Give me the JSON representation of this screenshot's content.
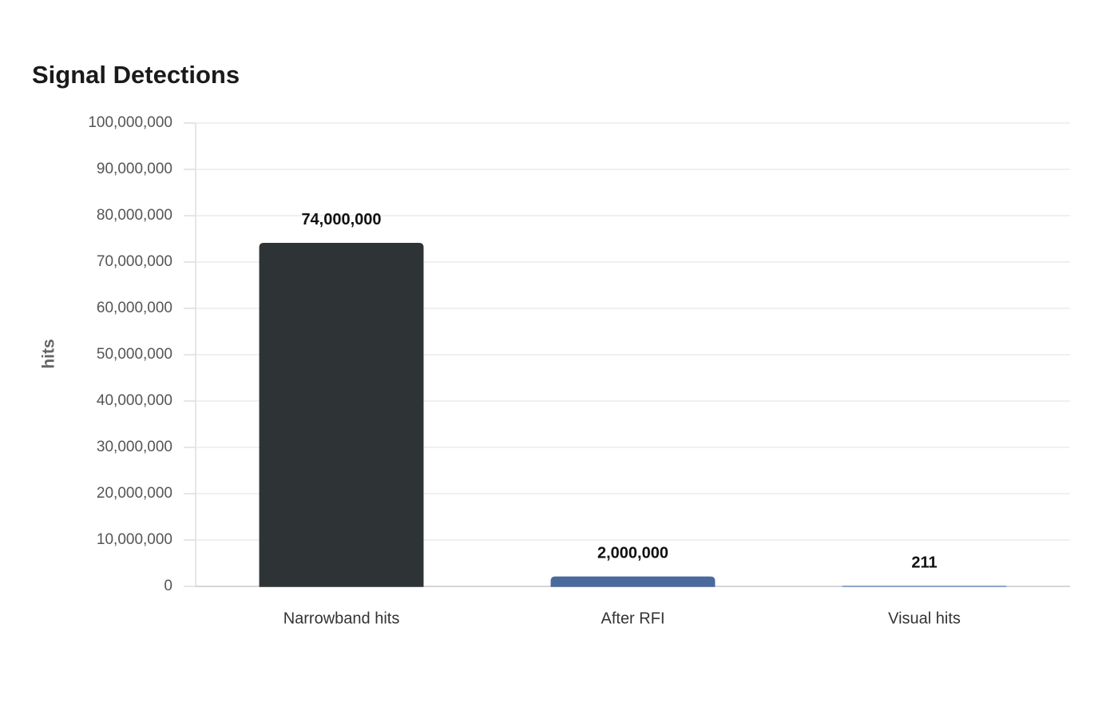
{
  "chart_data": {
    "type": "bar",
    "title": "Signal Detections",
    "y_label": "hits",
    "categories": [
      "Narrowband hits",
      "After RFI",
      "Visual hits"
    ],
    "values": [
      74000000,
      2000000,
      211
    ],
    "value_labels": [
      "74,000,000",
      "2,000,000",
      "211"
    ],
    "colors": [
      "#2e3436",
      "#4a6a9e",
      "#7393c2"
    ],
    "ylim": [
      0,
      100000000
    ],
    "yticks": [
      0,
      {
        "value": 10000000,
        "label": "10,000,000"
      },
      {
        "value": 20000000,
        "label": "20,000,000"
      },
      {
        "value": 30000000,
        "label": "30,000,000"
      },
      {
        "value": 40000000,
        "label": "40,000,000"
      },
      {
        "value": 50000000,
        "label": "50,000,000"
      },
      {
        "value": 60000000,
        "label": "60,000,000"
      },
      {
        "value": 70000000,
        "label": "70,000,000"
      },
      {
        "value": 80000000,
        "label": "80,000,000"
      },
      {
        "value": 90000000,
        "label": "90,000,000"
      },
      {
        "value": 100000000,
        "label": "100,000,000"
      }
    ],
    "grid": true
  }
}
